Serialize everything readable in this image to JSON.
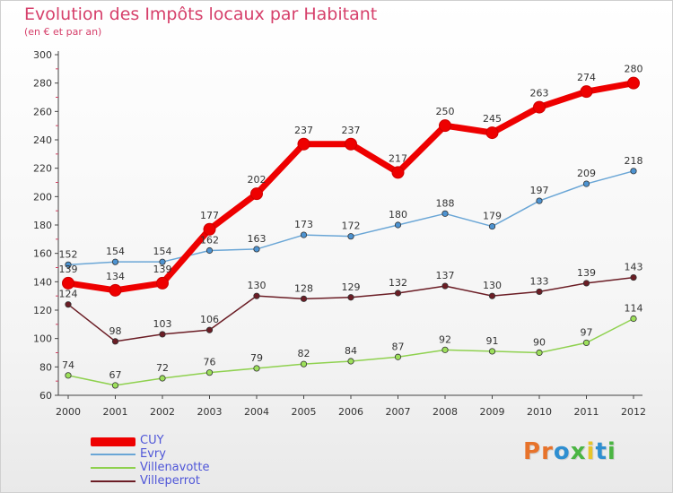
{
  "title": "Evolution des Impôts locaux par Habitant",
  "subtitle": "(en € et par an)",
  "brand": {
    "letters": [
      "P",
      "r",
      "o",
      "x",
      "i",
      "t",
      "i"
    ],
    "colors": [
      "#e7732b",
      "#e7732b",
      "#2f8fd1",
      "#4bb543",
      "#e7c52b",
      "#2f8fd1",
      "#4bb543"
    ]
  },
  "chart_data": {
    "type": "line",
    "x": [
      "2000",
      "2001",
      "2002",
      "2003",
      "2004",
      "2005",
      "2006",
      "2007",
      "2008",
      "2009",
      "2010",
      "2011",
      "2012"
    ],
    "ylim": [
      60,
      300
    ],
    "yticks": [
      "60",
      "80",
      "100",
      "120",
      "140",
      "160",
      "180",
      "200",
      "220",
      "240",
      "260",
      "280",
      "300"
    ],
    "grid": false,
    "legend": "bottom-left",
    "series": [
      {
        "name": "Villenavotte",
        "color": "#8fd14f",
        "marker": "#9de05b",
        "values": [
          74,
          67,
          72,
          76,
          79,
          82,
          84,
          87,
          92,
          91,
          90,
          97,
          114
        ],
        "labels": [
          "74",
          "67",
          "72",
          "76",
          "79",
          "82",
          "84",
          "87",
          "92",
          "91",
          "90",
          "97",
          "114"
        ]
      },
      {
        "name": "Villeperrot",
        "color": "#6b1d25",
        "marker": "#6b1d25",
        "values": [
          124,
          98,
          103,
          106,
          130,
          128,
          129,
          132,
          137,
          130,
          133,
          139,
          143
        ],
        "labels": [
          "124",
          "98",
          "103",
          "106",
          "130",
          "128",
          "129",
          "132",
          "137",
          "130",
          "133",
          "139",
          "143"
        ]
      },
      {
        "name": "Evry",
        "color": "#6aa6d6",
        "marker": "#4d93d1",
        "values": [
          152,
          154,
          154,
          162,
          163,
          173,
          172,
          180,
          188,
          179,
          197,
          209,
          218
        ],
        "labels": [
          "152",
          "154",
          "154",
          "162",
          "163",
          "173",
          "172",
          "180",
          "188",
          "179",
          "197",
          "209",
          "218"
        ]
      },
      {
        "name": "CUY",
        "color": "#ee0000",
        "marker": "#ee0000",
        "values": [
          139,
          134,
          139,
          177,
          202,
          237,
          237,
          217,
          250,
          245,
          263,
          274,
          280
        ],
        "labels": [
          "139",
          "134",
          "139",
          "177",
          "202",
          "237",
          "237",
          "217",
          "250",
          "245",
          "263",
          "274",
          "280"
        ]
      }
    ],
    "legend_entries": [
      {
        "name": "CUY",
        "color": "#ee0000"
      },
      {
        "name": "Evry",
        "color": "#6aa6d6"
      },
      {
        "name": "Villenavotte",
        "color": "#8fd14f"
      },
      {
        "name": "Villeperrot",
        "color": "#6b1d25"
      }
    ]
  }
}
